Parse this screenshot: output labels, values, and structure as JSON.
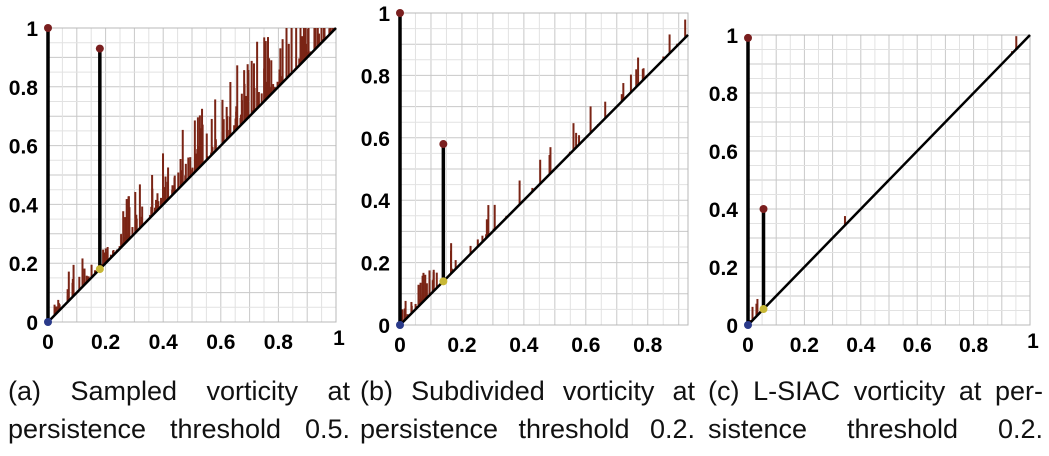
{
  "chart_data": [
    {
      "type": "persistence-diagram",
      "caption_lines": [
        "(a)  Sampled  vorticity  at",
        "persistence threshold 0.5."
      ],
      "x_ticks": [
        "0",
        "0.2",
        "0.4",
        "0.6",
        "0.8",
        "1"
      ],
      "y_ticks": [
        "0",
        "0.2",
        "0.4",
        "0.6",
        "0.8",
        "1"
      ],
      "xlim": [
        0,
        1
      ],
      "ylim": [
        0,
        1
      ],
      "grid": true,
      "tall_bars": [
        {
          "birth": 0.0,
          "death": 1.0
        },
        {
          "birth": 0.18,
          "death": 0.93
        }
      ],
      "point_colors": {
        "top": "#7a1f1f",
        "bottom_first": "#2a3a8a",
        "bottom_other": "#c8b836"
      },
      "noise_density": "high",
      "noise_max": 0.22,
      "noise_seed": 11
    },
    {
      "type": "persistence-diagram",
      "caption_lines": [
        "(b) Subdivided vorticity at",
        "persistence threshold 0.2."
      ],
      "x_ticks": [
        "0",
        "0.2",
        "0.4",
        "0.6",
        "0.8"
      ],
      "y_ticks": [
        "0",
        "0.2",
        "0.4",
        "0.6",
        "0.8",
        "1"
      ],
      "xlim": [
        0,
        0.93
      ],
      "ylim": [
        0,
        1
      ],
      "grid": true,
      "tall_bars": [
        {
          "birth": 0.0,
          "death": 1.0
        },
        {
          "birth": 0.14,
          "death": 0.58
        }
      ],
      "point_colors": {
        "top": "#7a1f1f",
        "bottom_first": "#2a3a8a",
        "bottom_other": "#c8b836"
      },
      "noise_density": "medium",
      "noise_max": 0.1,
      "noise_seed": 23
    },
    {
      "type": "persistence-diagram",
      "caption_lines": [
        "(c) L-SIAC vorticity at per-",
        "sistence threshold 0.2."
      ],
      "x_ticks": [
        "0",
        "0.2",
        "0.4",
        "0.6",
        "0.8",
        "1"
      ],
      "y_ticks": [
        "0",
        "0.2",
        "0.4",
        "0.6",
        "0.8",
        "1"
      ],
      "xlim": [
        0,
        1
      ],
      "ylim": [
        0,
        1
      ],
      "grid": true,
      "tall_bars": [
        {
          "birth": 0.0,
          "death": 0.99
        },
        {
          "birth": 0.055,
          "death": 0.4
        }
      ],
      "point_colors": {
        "top": "#7a1f1f",
        "bottom_first": "#2a3a8a",
        "bottom_other": "#c8b836"
      },
      "noise_density": "low",
      "noise_max": 0.06,
      "noise_seed": 37
    }
  ]
}
